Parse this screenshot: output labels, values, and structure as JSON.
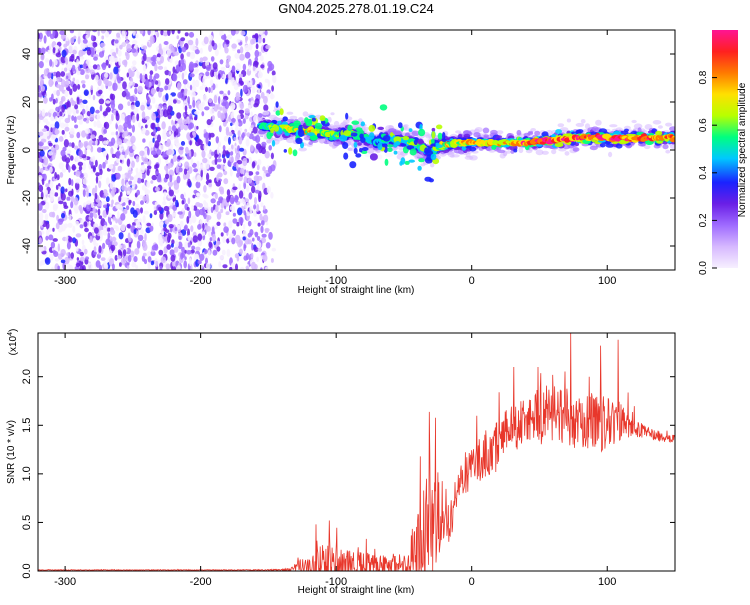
{
  "title": "GN04.2025.278.01.19.C24",
  "colors": {
    "snr_line": "#e8372b",
    "axis": "#000000",
    "colormap": [
      "#f7f0ff",
      "#d6b8ff",
      "#9f6bff",
      "#6a1fe6",
      "#1a22ff",
      "#00c8ff",
      "#00ff80",
      "#b8ff00",
      "#ffe000",
      "#ff7a00",
      "#ff2020",
      "#ff1493"
    ]
  },
  "chart_data": [
    {
      "type": "heatmap",
      "name": "spectrogram",
      "xlabel": "Height of straight line (km)",
      "ylabel": "Frequency (Hz)",
      "xlim": [
        -320,
        150
      ],
      "ylim": [
        -50,
        50
      ],
      "xticks": [
        -300,
        -200,
        -100,
        0,
        100
      ],
      "xtick_labels": [
        "-300",
        "-200",
        "-100",
        "0",
        "100"
      ],
      "yticks": [
        -40,
        -20,
        0,
        20,
        40
      ],
      "ytick_labels": [
        "-40",
        "-20",
        "0",
        "20",
        "40"
      ],
      "noise_region_x": [
        -320,
        -145
      ],
      "ridge": {
        "x": [
          -155,
          -140,
          -120,
          -100,
          -90,
          -80,
          -70,
          -60,
          -50,
          -40,
          -30,
          -25,
          -20,
          -10,
          0,
          20,
          40,
          60,
          80,
          100,
          120,
          150
        ],
        "frequency": [
          10,
          9,
          8,
          6,
          7,
          5,
          3,
          5,
          4,
          2,
          -1,
          1,
          2,
          3,
          3,
          3,
          3,
          4,
          5,
          5,
          5,
          5
        ],
        "amplitude": [
          0.45,
          0.6,
          0.7,
          0.6,
          0.55,
          0.5,
          0.45,
          0.5,
          0.5,
          0.55,
          0.5,
          0.6,
          0.7,
          0.65,
          0.7,
          0.75,
          0.85,
          0.9,
          0.9,
          0.85,
          0.9,
          0.75
        ]
      },
      "colorbar": {
        "label": "Normalized spectral amplitude",
        "ticks": [
          0.0,
          0.2,
          0.4,
          0.6,
          0.8
        ],
        "tick_labels": [
          "0.0",
          "0.2",
          "0.4",
          "0.6",
          "0.8"
        ],
        "range": [
          0,
          1
        ]
      }
    },
    {
      "type": "line",
      "name": "snr",
      "xlabel": "Height of straight line (km)",
      "ylabel": "SNR (10 * v/v)",
      "scale_label": "(x10",
      "scale_exp": "4",
      "scale_close": ")",
      "xlim": [
        -320,
        150
      ],
      "ylim": [
        0,
        2.45
      ],
      "xticks": [
        -300,
        -200,
        -100,
        0,
        100
      ],
      "xtick_labels": [
        "-300",
        "-200",
        "-100",
        "0",
        "100"
      ],
      "yticks": [
        0.0,
        0.5,
        1.0,
        1.5,
        2.0
      ],
      "ytick_labels": [
        "0.0",
        "0.5",
        "1.0",
        "1.5",
        "2.0"
      ],
      "envelope": {
        "x": [
          -320,
          -200,
          -140,
          -130,
          -120,
          -110,
          -100,
          -90,
          -80,
          -70,
          -60,
          -50,
          -45,
          -40,
          -35,
          -30,
          -25,
          -20,
          -15,
          -12,
          -10,
          0,
          10,
          20,
          30,
          40,
          50,
          60,
          70,
          80,
          90,
          100,
          110,
          120,
          130,
          140,
          150
        ],
        "base": [
          0.01,
          0.01,
          0.01,
          0.03,
          0.05,
          0.07,
          0.08,
          0.07,
          0.06,
          0.06,
          0.05,
          0.06,
          0.1,
          0.3,
          0.4,
          0.5,
          0.55,
          0.45,
          0.5,
          0.8,
          0.9,
          1.05,
          1.2,
          1.3,
          1.45,
          1.55,
          1.6,
          1.6,
          1.58,
          1.55,
          1.55,
          1.5,
          1.55,
          1.48,
          1.42,
          1.38,
          1.36
        ],
        "amp": [
          0.005,
          0.005,
          0.01,
          0.06,
          0.18,
          0.35,
          0.35,
          0.22,
          0.22,
          0.18,
          0.15,
          0.2,
          0.45,
          0.7,
          0.9,
          0.9,
          0.85,
          0.4,
          0.3,
          0.3,
          0.25,
          0.35,
          0.4,
          0.45,
          0.4,
          0.35,
          0.45,
          0.5,
          0.5,
          0.45,
          0.45,
          0.45,
          0.3,
          0.15,
          0.1,
          0.08,
          0.06
        ]
      },
      "spikes": [
        {
          "x": -115,
          "y": 0.48
        },
        {
          "x": -105,
          "y": 0.52
        },
        {
          "x": -38,
          "y": 1.18
        },
        {
          "x": -31,
          "y": 1.22
        },
        {
          "x": 31,
          "y": 2.1
        },
        {
          "x": 49,
          "y": 2.1
        },
        {
          "x": 73,
          "y": 2.45
        },
        {
          "x": 95,
          "y": 2.32
        },
        {
          "x": 108,
          "y": 2.38
        }
      ]
    }
  ]
}
